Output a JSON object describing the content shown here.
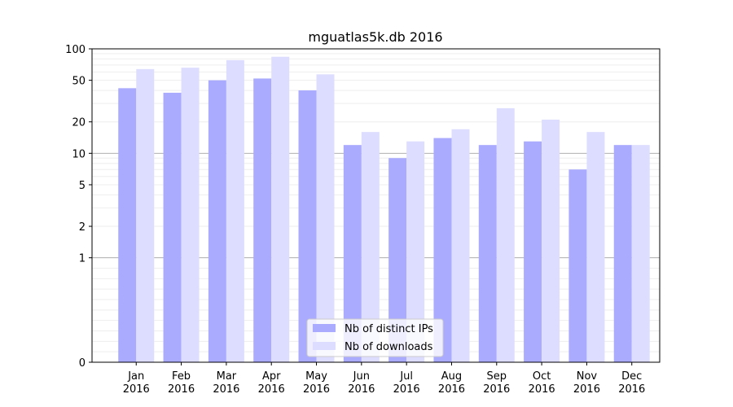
{
  "chart_data": {
    "type": "bar",
    "title": "mguatlas5k.db 2016",
    "xlabel": "",
    "ylabel": "",
    "yscale": "symlog",
    "ylim": [
      0,
      100
    ],
    "yticks": [
      0,
      1,
      2,
      5,
      10,
      20,
      50,
      100
    ],
    "ytick_labels": [
      "0",
      "1",
      "2",
      "5",
      "10",
      "20",
      "50",
      "100"
    ],
    "grid": "horizontal",
    "legend_position": "bottom-center",
    "categories": [
      [
        "Jan",
        "2016"
      ],
      [
        "Feb",
        "2016"
      ],
      [
        "Mar",
        "2016"
      ],
      [
        "Apr",
        "2016"
      ],
      [
        "May",
        "2016"
      ],
      [
        "Jun",
        "2016"
      ],
      [
        "Jul",
        "2016"
      ],
      [
        "Aug",
        "2016"
      ],
      [
        "Sep",
        "2016"
      ],
      [
        "Oct",
        "2016"
      ],
      [
        "Nov",
        "2016"
      ],
      [
        "Dec",
        "2016"
      ]
    ],
    "series": [
      {
        "name": "Nb of distinct IPs",
        "color": "#aaaaff",
        "values": [
          42,
          38,
          50,
          52,
          40,
          12,
          9,
          14,
          12,
          13,
          7,
          12
        ]
      },
      {
        "name": "Nb of downloads",
        "color": "#ddddff",
        "values": [
          64,
          66,
          78,
          84,
          57,
          16,
          13,
          17,
          27,
          21,
          16,
          12
        ]
      }
    ]
  }
}
